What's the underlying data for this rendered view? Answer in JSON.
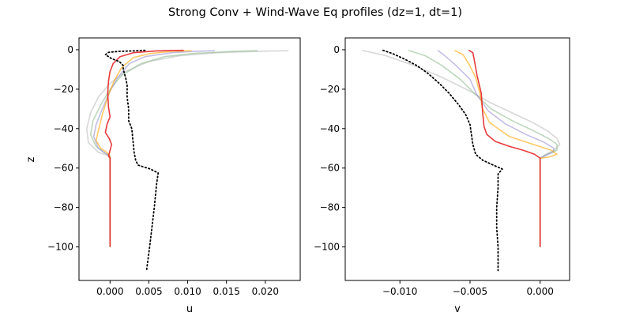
{
  "title": "Strong Conv + Wind-Wave Eq profiles (dz=1, dt=1)",
  "series_colors": {
    "obs": "#000000",
    "gray": "#bdbdbd",
    "green": "#8fbc8f",
    "purple": "#9b93d6",
    "orange": "#ffa500",
    "red": "#e31a1c"
  },
  "chart_data": [
    {
      "type": "line",
      "xlabel": "u",
      "ylabel": "z",
      "xlim": [
        -0.004,
        0.0245
      ],
      "ylim": [
        -117,
        6
      ],
      "xticks": [
        0.0,
        0.005,
        0.01,
        0.015,
        0.02
      ],
      "xtick_labels": [
        "0.000",
        "0.005",
        "0.010",
        "0.015",
        "0.020"
      ],
      "yticks": [
        0,
        -20,
        -40,
        -60,
        -80,
        -100
      ],
      "ytick_labels": [
        "0",
        "−20",
        "−40",
        "−60",
        "−80",
        "−100"
      ],
      "series": [
        {
          "color_key": "gray",
          "points": [
            [
              0.023,
              -0.5
            ],
            [
              0.02,
              -0.7
            ],
            [
              0.014,
              -1.5
            ],
            [
              0.009,
              -3
            ],
            [
              0.005,
              -6
            ],
            [
              0.002,
              -11
            ],
            [
              0.0,
              -17
            ],
            [
              -0.0015,
              -24
            ],
            [
              -0.0025,
              -32
            ],
            [
              -0.003,
              -40
            ],
            [
              -0.0028,
              -47
            ],
            [
              -0.0015,
              -52
            ],
            [
              0.0,
              -54
            ],
            [
              0.0,
              -100
            ]
          ]
        },
        {
          "color_key": "green",
          "points": [
            [
              0.019,
              -0.5
            ],
            [
              0.016,
              -0.8
            ],
            [
              0.011,
              -1.8
            ],
            [
              0.007,
              -3.5
            ],
            [
              0.004,
              -7
            ],
            [
              0.0015,
              -13
            ],
            [
              0.0,
              -20
            ],
            [
              -0.0012,
              -28
            ],
            [
              -0.0022,
              -36
            ],
            [
              -0.0025,
              -43
            ],
            [
              -0.0018,
              -49
            ],
            [
              -0.0008,
              -52
            ],
            [
              0.0,
              -54
            ],
            [
              0.0,
              -100
            ]
          ]
        },
        {
          "color_key": "purple",
          "points": [
            [
              0.0135,
              -0.5
            ],
            [
              0.011,
              -0.8
            ],
            [
              0.008,
              -1.5
            ],
            [
              0.0045,
              -3.5
            ],
            [
              0.0025,
              -7
            ],
            [
              0.001,
              -14
            ],
            [
              0.0,
              -21
            ],
            [
              -0.001,
              -30
            ],
            [
              -0.0018,
              -38
            ],
            [
              -0.0021,
              -44
            ],
            [
              -0.0015,
              -50
            ],
            [
              -0.0006,
              -52.5
            ],
            [
              0.0,
              -54
            ],
            [
              0.0,
              -100
            ]
          ]
        },
        {
          "color_key": "orange",
          "points": [
            [
              0.0105,
              -0.5
            ],
            [
              0.008,
              -0.8
            ],
            [
              0.005,
              -2
            ],
            [
              0.003,
              -4
            ],
            [
              0.0015,
              -9
            ],
            [
              0.0005,
              -16
            ],
            [
              -0.0003,
              -24
            ],
            [
              -0.001,
              -33
            ],
            [
              -0.0015,
              -41
            ],
            [
              -0.0018,
              -46
            ],
            [
              -0.0012,
              -50
            ],
            [
              -0.0004,
              -52
            ],
            [
              0.0,
              -54
            ],
            [
              0.0,
              -100
            ]
          ]
        },
        {
          "color_key": "red",
          "points": [
            [
              0.0095,
              -0.3
            ],
            [
              0.006,
              -0.6
            ],
            [
              0.003,
              -1.5
            ],
            [
              0.0013,
              -3.5
            ],
            [
              0.0004,
              -7
            ],
            [
              0.0,
              -11
            ],
            [
              -0.0002,
              -16
            ],
            [
              -0.0003,
              -22
            ],
            [
              -0.0002,
              -29
            ],
            [
              0.0,
              -34
            ],
            [
              -0.0004,
              -38
            ],
            [
              -0.0006,
              -42
            ],
            [
              -0.0001,
              -45
            ],
            [
              0.0002,
              -48
            ],
            [
              0.0,
              -51
            ],
            [
              -0.0002,
              -54
            ],
            [
              0.0,
              -55
            ],
            [
              0.0,
              -100
            ]
          ]
        },
        {
          "color_key": "obs",
          "dashed": true,
          "points": [
            [
              0.0045,
              -0.3
            ],
            [
              0.003,
              -0.6
            ],
            [
              0.0012,
              -0.8
            ],
            [
              -0.0002,
              -1.3
            ],
            [
              -0.0006,
              -2.5
            ],
            [
              0.0002,
              -4.5
            ],
            [
              0.0012,
              -6
            ],
            [
              0.0017,
              -8
            ],
            [
              0.0017,
              -10
            ],
            [
              0.002,
              -14
            ],
            [
              0.0022,
              -18
            ],
            [
              0.0022,
              -24
            ],
            [
              0.0024,
              -30
            ],
            [
              0.0024,
              -36
            ],
            [
              0.0028,
              -40
            ],
            [
              0.0029,
              -44
            ],
            [
              0.003,
              -48
            ],
            [
              0.0031,
              -52
            ],
            [
              0.0033,
              -56
            ],
            [
              0.0036,
              -58.5
            ],
            [
              0.0052,
              -60.5
            ],
            [
              0.0062,
              -62.5
            ],
            [
              0.006,
              -68
            ],
            [
              0.0057,
              -80
            ],
            [
              0.0054,
              -90
            ],
            [
              0.0051,
              -100
            ],
            [
              0.0047,
              -112
            ]
          ]
        }
      ]
    },
    {
      "type": "line",
      "xlabel": "v",
      "ylabel": "",
      "xlim": [
        -0.0139,
        0.0021
      ],
      "ylim": [
        -117,
        6
      ],
      "xticks": [
        -0.01,
        -0.005,
        0.0
      ],
      "xtick_labels": [
        "−0.010",
        "−0.005",
        "0.000"
      ],
      "yticks": [
        0,
        -20,
        -40,
        -60,
        -80,
        -100
      ],
      "ytick_labels": [
        "0",
        "−20",
        "−40",
        "−60",
        "−80",
        "−100"
      ],
      "series": [
        {
          "color_key": "gray",
          "points": [
            [
              -0.0127,
              -0.3
            ],
            [
              -0.011,
              -3
            ],
            [
              -0.009,
              -8
            ],
            [
              -0.007,
              -14
            ],
            [
              -0.005,
              -21
            ],
            [
              -0.0035,
              -27
            ],
            [
              -0.002,
              -32
            ],
            [
              -0.0005,
              -37
            ],
            [
              0.0005,
              -41
            ],
            [
              0.0012,
              -45
            ],
            [
              0.0014,
              -48
            ],
            [
              0.001,
              -51
            ],
            [
              0.0004,
              -53
            ],
            [
              0.0,
              -55
            ],
            [
              0.0,
              -100
            ]
          ]
        },
        {
          "color_key": "green",
          "points": [
            [
              -0.0094,
              -0.3
            ],
            [
              -0.0082,
              -3
            ],
            [
              -0.007,
              -8
            ],
            [
              -0.0057,
              -15
            ],
            [
              -0.0047,
              -22
            ],
            [
              -0.0035,
              -30
            ],
            [
              -0.002,
              -36
            ],
            [
              -0.0005,
              -41
            ],
            [
              0.0006,
              -45
            ],
            [
              0.0012,
              -48
            ],
            [
              0.0012,
              -51
            ],
            [
              0.0005,
              -53
            ],
            [
              0.0,
              -55
            ],
            [
              0.0,
              -100
            ]
          ]
        },
        {
          "color_key": "purple",
          "points": [
            [
              -0.0073,
              -0.3
            ],
            [
              -0.0068,
              -3
            ],
            [
              -0.006,
              -8
            ],
            [
              -0.005,
              -15
            ],
            [
              -0.0045,
              -23
            ],
            [
              -0.0037,
              -31
            ],
            [
              -0.0025,
              -37.5
            ],
            [
              -0.001,
              -43
            ],
            [
              0.0003,
              -47
            ],
            [
              0.001,
              -50
            ],
            [
              0.0009,
              -52
            ],
            [
              0.0003,
              -54
            ],
            [
              0.0,
              -55
            ],
            [
              0.0,
              -100
            ]
          ]
        },
        {
          "color_key": "orange",
          "points": [
            [
              -0.0061,
              -0.3
            ],
            [
              -0.0055,
              -2.5
            ],
            [
              -0.0051,
              -7
            ],
            [
              -0.0046,
              -14
            ],
            [
              -0.0043,
              -22
            ],
            [
              -0.0041,
              -30
            ],
            [
              -0.0036,
              -37
            ],
            [
              -0.0022,
              -44
            ],
            [
              -0.0005,
              -48
            ],
            [
              0.0008,
              -51
            ],
            [
              0.0012,
              -53
            ],
            [
              0.0006,
              -54.5
            ],
            [
              0.0,
              -55
            ],
            [
              0.0,
              -100
            ]
          ]
        },
        {
          "color_key": "red",
          "points": [
            [
              -0.0051,
              -0.2
            ],
            [
              -0.0048,
              -1.5
            ],
            [
              -0.0047,
              -5
            ],
            [
              -0.0045,
              -13
            ],
            [
              -0.0042,
              -22
            ],
            [
              -0.0041,
              -32
            ],
            [
              -0.004,
              -39
            ],
            [
              -0.0038,
              -43
            ],
            [
              -0.0032,
              -46.5
            ],
            [
              -0.0022,
              -49
            ],
            [
              -0.0012,
              -51
            ],
            [
              -0.0004,
              -53
            ],
            [
              0.0,
              -55
            ],
            [
              0.0,
              -100
            ]
          ]
        },
        {
          "color_key": "obs",
          "dashed": true,
          "points": [
            [
              -0.0112,
              -0.3
            ],
            [
              -0.0105,
              -2
            ],
            [
              -0.0096,
              -5
            ],
            [
              -0.0088,
              -8
            ],
            [
              -0.008,
              -12
            ],
            [
              -0.0072,
              -17
            ],
            [
              -0.0065,
              -22
            ],
            [
              -0.0058,
              -28
            ],
            [
              -0.0053,
              -33
            ],
            [
              -0.005,
              -38
            ],
            [
              -0.0049,
              -43
            ],
            [
              -0.0048,
              -48
            ],
            [
              -0.0046,
              -53
            ],
            [
              -0.0041,
              -56
            ],
            [
              -0.0035,
              -58
            ],
            [
              -0.0027,
              -60.5
            ],
            [
              -0.003,
              -63
            ],
            [
              -0.003,
              -70
            ],
            [
              -0.0031,
              -80
            ],
            [
              -0.0031,
              -90
            ],
            [
              -0.003,
              -100
            ],
            [
              -0.003,
              -112
            ]
          ]
        }
      ]
    }
  ]
}
